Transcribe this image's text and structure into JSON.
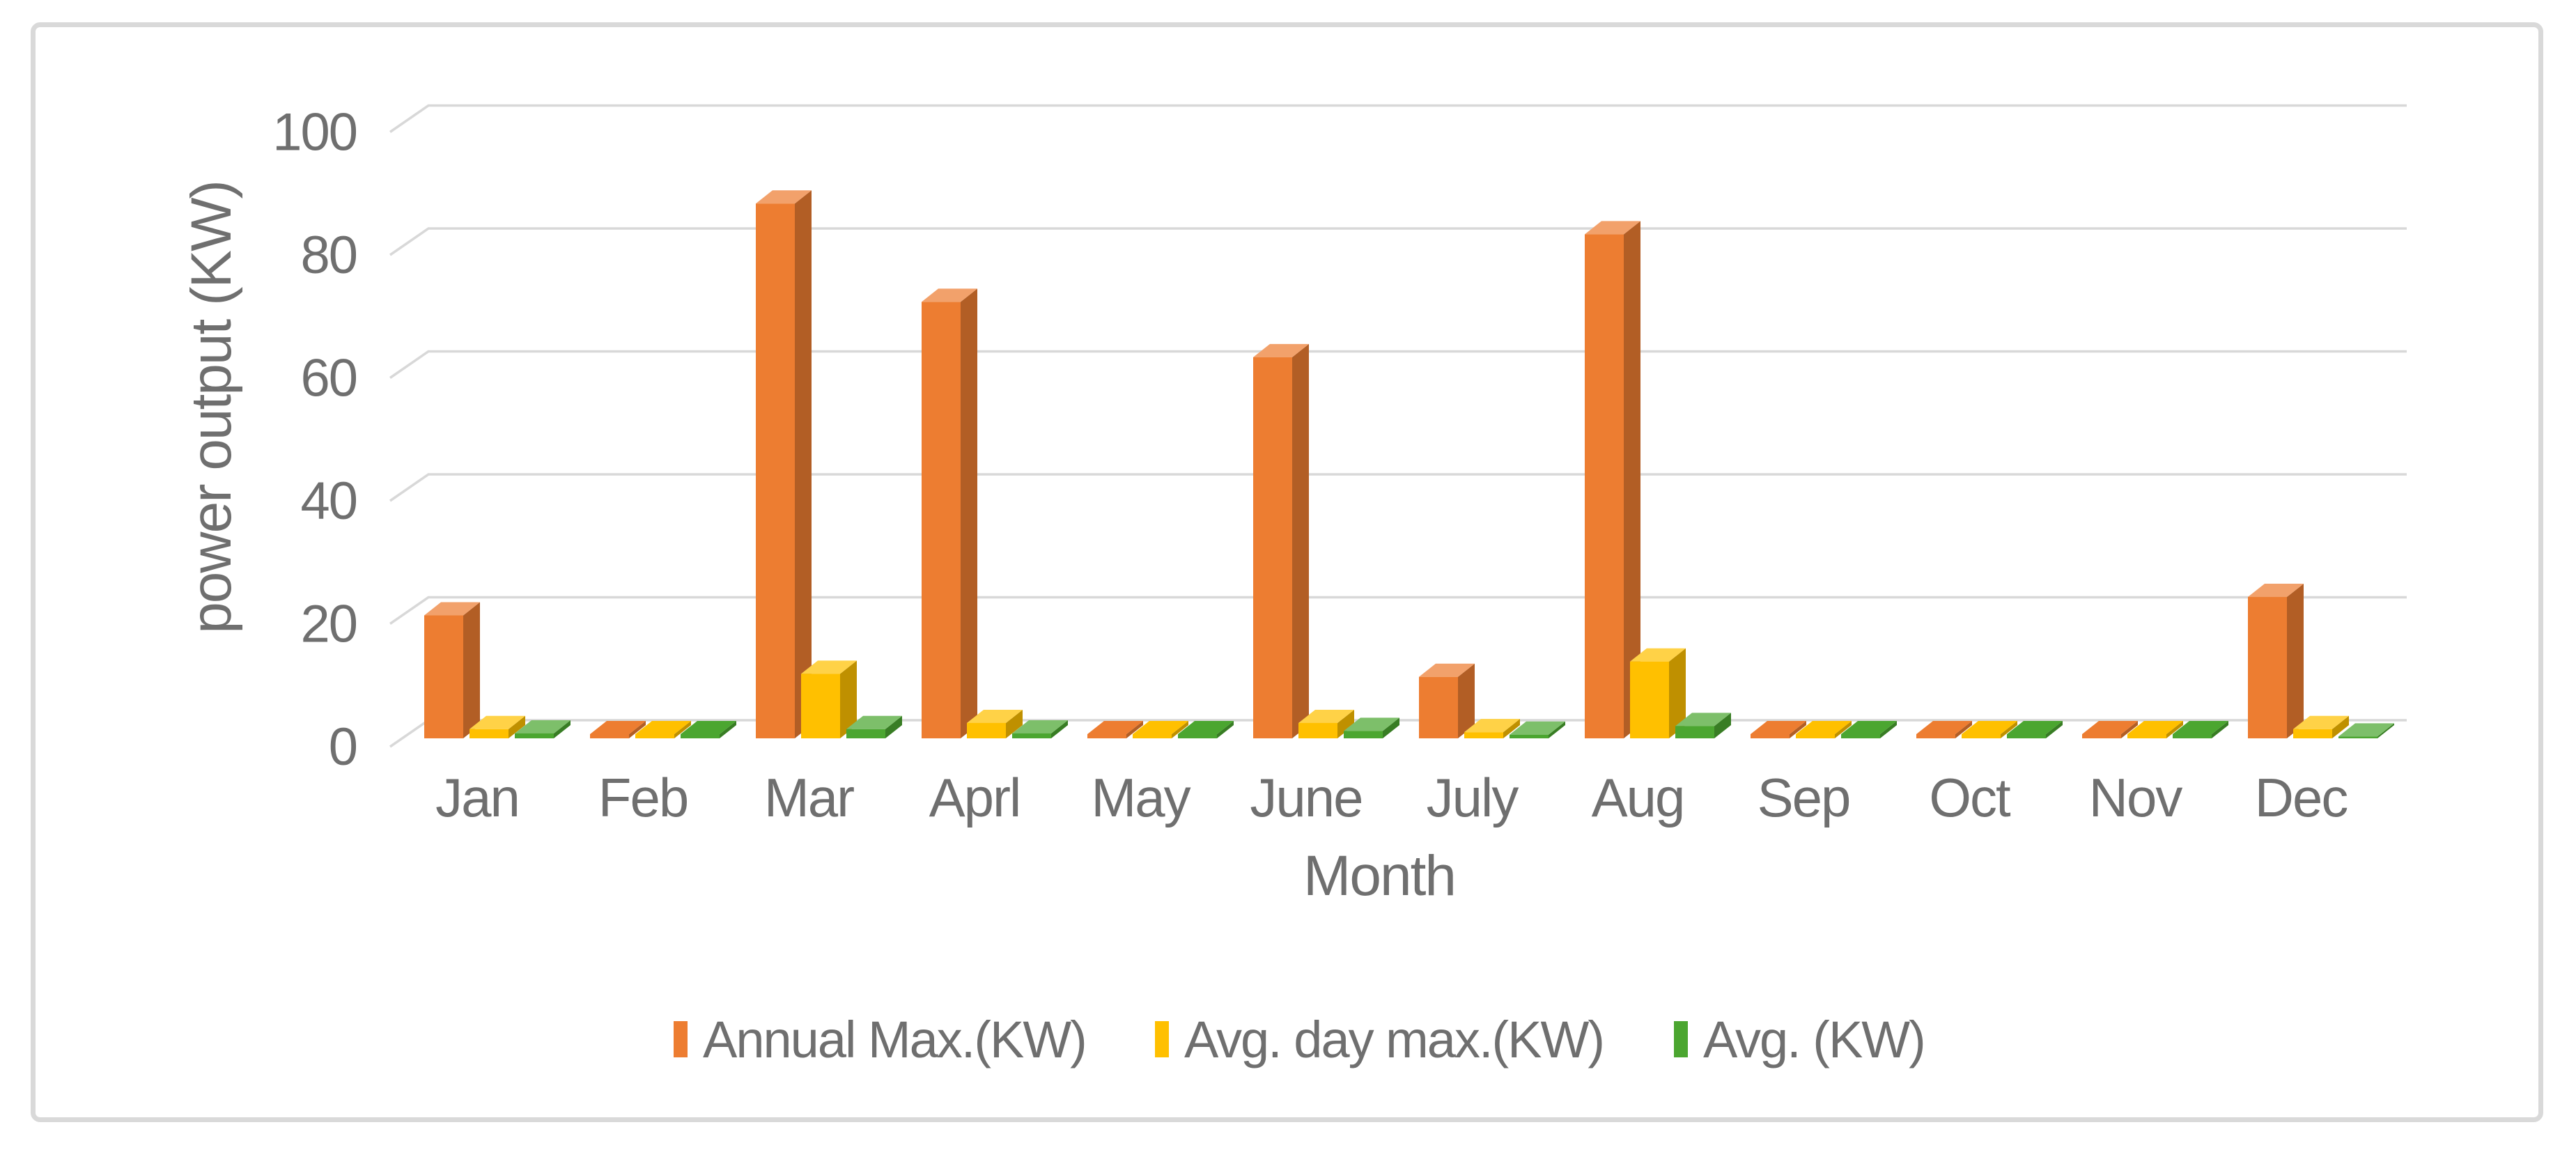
{
  "chart_data": {
    "type": "bar",
    "subtype": "3d-clustered-column",
    "title": "",
    "xlabel": "Month",
    "ylabel": "power output (KW)",
    "categories": [
      "Jan",
      "Feb",
      "Mar",
      "Aprl",
      "May",
      "June",
      "July",
      "Aug",
      "Sep",
      "Oct",
      "Nov",
      "Dec"
    ],
    "series": [
      {
        "name": "Annual Max.(KW)",
        "color": "#ED7D31",
        "values": [
          20,
          0,
          87,
          71,
          0,
          62,
          10,
          82,
          0,
          0,
          0,
          23
        ]
      },
      {
        "name": "Avg. day max.(KW)",
        "color": "#FFC000",
        "values": [
          1.5,
          0,
          10.5,
          2.5,
          0,
          2.5,
          1,
          12.5,
          0,
          0,
          0,
          1.5
        ]
      },
      {
        "name": "Avg. (KW)",
        "color": "#4BA630",
        "values": [
          0.8,
          0,
          1.5,
          0.8,
          0,
          1.2,
          0.6,
          2,
          0,
          0,
          0,
          0.3
        ]
      }
    ],
    "yticks": [
      0,
      20,
      40,
      60,
      80,
      100
    ],
    "ylim": [
      0,
      100
    ],
    "grid": "horizontal",
    "legend_position": "bottom",
    "grid_color": "#D8D8D8",
    "text_color": "#6F6F6F",
    "frame_color": "#D9D9D9",
    "background": "#FFFFFF"
  }
}
